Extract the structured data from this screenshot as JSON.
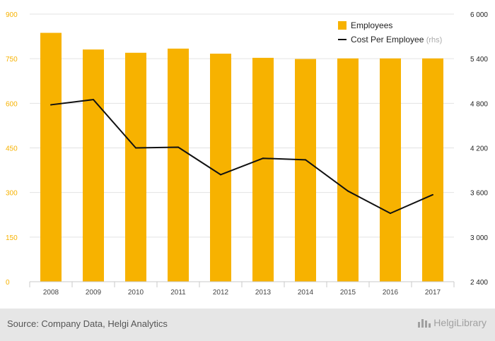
{
  "chart_data": {
    "type": "bar",
    "categories": [
      "2008",
      "2009",
      "2010",
      "2011",
      "2012",
      "2013",
      "2014",
      "2015",
      "2016",
      "2017"
    ],
    "series": [
      {
        "name": "Employees",
        "type": "bar",
        "axis": "left",
        "color": "#f7b200",
        "values": [
          837,
          781,
          770,
          784,
          767,
          753,
          749,
          751,
          751,
          751
        ]
      },
      {
        "name": "Cost Per Employee",
        "legend_suffix": "(rhs)",
        "type": "line",
        "axis": "right",
        "color": "#111111",
        "values": [
          4780,
          4850,
          4200,
          4210,
          3840,
          4060,
          4040,
          3620,
          3320,
          3570
        ]
      }
    ],
    "y_left": {
      "ylim": [
        0,
        900
      ],
      "ticks": [
        "0",
        "150",
        "300",
        "450",
        "600",
        "750",
        "900"
      ],
      "color": "#f7b200"
    },
    "y_right": {
      "ylim": [
        2400,
        6000
      ],
      "ticks": [
        "2 400",
        "3 000",
        "3 600",
        "4 200",
        "4 800",
        "5 400",
        "6 000"
      ],
      "color": "#222222"
    },
    "grid": true,
    "legend_position": "top-right",
    "xlabel": "",
    "ylabel": ""
  },
  "footer": {
    "source": "Source: Company Data, Helgi Analytics",
    "brand": "HelgiLibrary"
  }
}
